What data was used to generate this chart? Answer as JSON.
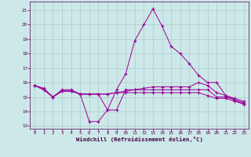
{
  "background_color": "#cde8e8",
  "grid_color": "#aacccc",
  "line_color": "#990099",
  "xlabel": "Windchill (Refroidissement éolien,°C)",
  "xlim": [
    -0.5,
    23.5
  ],
  "ylim": [
    12.8,
    21.6
  ],
  "yticks": [
    13,
    14,
    15,
    16,
    17,
    18,
    19,
    20,
    21
  ],
  "xticks": [
    0,
    1,
    2,
    3,
    4,
    5,
    6,
    7,
    8,
    9,
    10,
    11,
    12,
    13,
    14,
    15,
    16,
    17,
    18,
    19,
    20,
    21,
    22,
    23
  ],
  "lines": [
    [
      15.8,
      15.6,
      15.0,
      15.5,
      15.5,
      15.2,
      13.3,
      13.3,
      14.1,
      14.1,
      15.5,
      15.5,
      15.5,
      15.5,
      15.5,
      15.5,
      15.5,
      15.5,
      15.5,
      15.5,
      15.0,
      15.0,
      14.8,
      14.6
    ],
    [
      15.8,
      15.5,
      15.0,
      15.4,
      15.4,
      15.2,
      15.2,
      15.2,
      15.2,
      15.3,
      15.3,
      15.3,
      15.3,
      15.3,
      15.3,
      15.3,
      15.3,
      15.3,
      15.3,
      15.1,
      14.9,
      14.9,
      14.7,
      14.5
    ],
    [
      15.8,
      15.5,
      15.0,
      15.4,
      15.4,
      15.2,
      15.2,
      15.2,
      15.2,
      15.3,
      15.4,
      15.5,
      15.6,
      15.7,
      15.7,
      15.7,
      15.7,
      15.7,
      16.0,
      15.8,
      15.3,
      15.1,
      14.9,
      14.7
    ],
    [
      15.8,
      15.5,
      15.0,
      15.4,
      15.4,
      15.2,
      15.2,
      15.2,
      14.1,
      15.5,
      16.6,
      18.9,
      20.0,
      21.1,
      19.9,
      18.5,
      18.0,
      17.3,
      16.5,
      16.0,
      16.0,
      15.1,
      14.8,
      14.5
    ]
  ]
}
